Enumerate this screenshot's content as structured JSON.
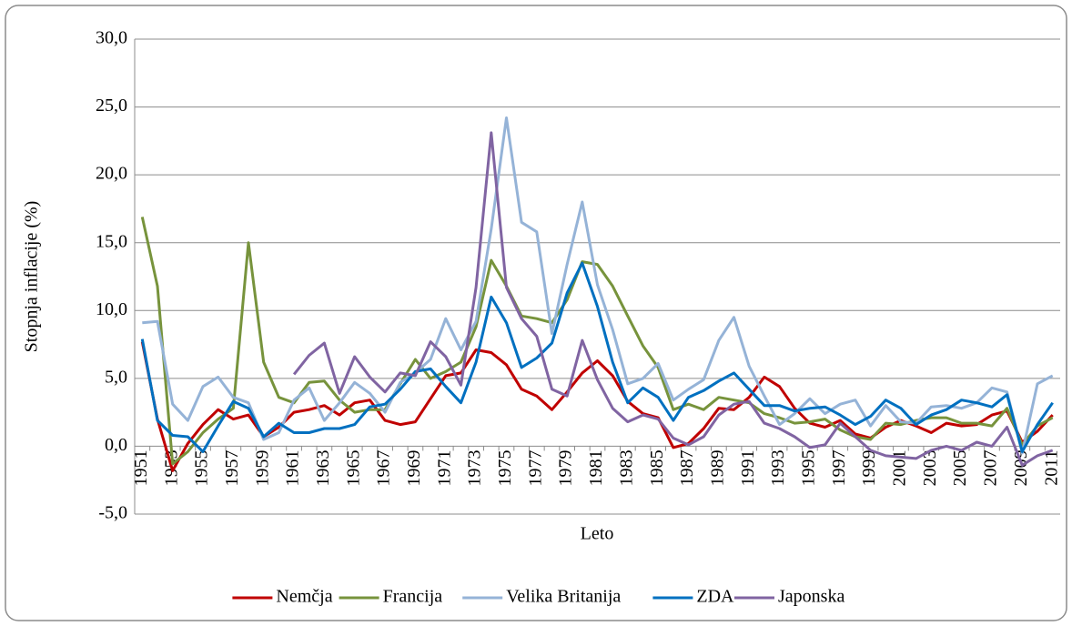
{
  "chart_data": {
    "type": "line",
    "y_label": "Stopnja inflacije (%)",
    "x_label": "Leto",
    "categories": [
      "1951",
      null,
      "1953",
      null,
      "1955",
      null,
      "1957",
      null,
      "1959",
      null,
      "1961",
      null,
      "1963",
      null,
      "1965",
      null,
      "1967",
      null,
      "1969",
      null,
      "1971",
      null,
      "1973",
      null,
      "1975",
      null,
      "1977",
      null,
      "1979",
      null,
      "1981",
      null,
      "1983",
      null,
      "1985",
      null,
      "1987",
      null,
      "1989",
      null,
      "1991",
      null,
      "1993",
      null,
      "1995",
      null,
      "1997",
      null,
      "1999",
      null,
      "2001",
      null,
      "2003",
      null,
      "2005",
      null,
      "2007",
      null,
      "2009",
      null,
      "2011"
    ],
    "ylim": [
      -5,
      30
    ],
    "yticks": [
      {
        "value": -5,
        "label": "-5,0"
      },
      {
        "value": 0,
        "label": "0,0"
      },
      {
        "value": 5,
        "label": "5,0"
      },
      {
        "value": 10,
        "label": "10,0"
      },
      {
        "value": 15,
        "label": "15,0"
      },
      {
        "value": 20,
        "label": "20,0"
      },
      {
        "value": 25,
        "label": "25,0"
      },
      {
        "value": 30,
        "label": "30,0"
      }
    ],
    "grid": true,
    "legend": "bottom",
    "series": [
      {
        "name": "Nemčja",
        "color": "#c00000",
        "values": [
          7.7,
          2.0,
          -1.8,
          0.2,
          1.6,
          2.7,
          2.0,
          2.3,
          0.7,
          1.4,
          2.5,
          2.7,
          3.0,
          2.3,
          3.2,
          3.4,
          1.9,
          1.6,
          1.8,
          3.5,
          5.2,
          5.4,
          7.1,
          6.9,
          6.0,
          4.2,
          3.7,
          2.7,
          4.0,
          5.4,
          6.3,
          5.2,
          3.3,
          2.4,
          2.1,
          -0.1,
          0.2,
          1.3,
          2.8,
          2.7,
          3.6,
          5.1,
          4.4,
          2.8,
          1.7,
          1.4,
          1.9,
          0.9,
          0.6,
          1.4,
          1.9,
          1.5,
          1.0,
          1.7,
          1.5,
          1.6,
          2.3,
          2.6,
          0.3,
          1.1,
          2.3
        ]
      },
      {
        "name": "Francija",
        "color": "#77933c",
        "values": [
          16.9,
          11.8,
          -1.3,
          -0.4,
          1.0,
          2.0,
          2.8,
          15.0,
          6.2,
          3.6,
          3.2,
          4.7,
          4.8,
          3.4,
          2.5,
          2.7,
          2.7,
          4.6,
          6.4,
          5.0,
          5.5,
          6.2,
          8.8,
          13.7,
          11.8,
          9.6,
          9.4,
          9.1,
          10.8,
          13.6,
          13.4,
          11.8,
          9.6,
          7.4,
          5.8,
          2.7,
          3.1,
          2.7,
          3.6,
          3.4,
          3.2,
          2.4,
          2.1,
          1.7,
          1.8,
          2.0,
          1.2,
          0.7,
          0.5,
          1.7,
          1.6,
          1.9,
          2.1,
          2.1,
          1.7,
          1.7,
          1.5,
          2.8,
          0.1,
          1.5,
          2.1
        ]
      },
      {
        "name": "Velika Britanija",
        "color": "#95b3d7",
        "values": [
          9.1,
          9.2,
          3.1,
          1.9,
          4.4,
          5.1,
          3.6,
          3.2,
          0.5,
          1.0,
          3.4,
          4.3,
          1.9,
          3.2,
          4.7,
          3.9,
          2.5,
          4.7,
          5.4,
          6.4,
          9.4,
          7.1,
          9.2,
          16.0,
          24.2,
          16.5,
          15.8,
          8.3,
          13.4,
          18.0,
          11.9,
          8.6,
          4.6,
          5.0,
          6.1,
          3.4,
          4.2,
          4.9,
          7.8,
          9.5,
          5.9,
          3.7,
          1.6,
          2.4,
          3.5,
          2.4,
          3.1,
          3.4,
          1.5,
          3.0,
          1.8,
          1.7,
          2.9,
          3.0,
          2.8,
          3.2,
          4.3,
          4.0,
          -0.5,
          4.6,
          5.2
        ]
      },
      {
        "name": "ZDA",
        "color": "#0070c0",
        "values": [
          7.9,
          1.9,
          0.8,
          0.7,
          -0.4,
          1.5,
          3.3,
          2.8,
          0.7,
          1.7,
          1.0,
          1.0,
          1.3,
          1.3,
          1.6,
          2.9,
          3.1,
          4.2,
          5.5,
          5.7,
          4.4,
          3.2,
          6.2,
          11.0,
          9.1,
          5.8,
          6.5,
          7.6,
          11.3,
          13.5,
          10.3,
          6.2,
          3.2,
          4.3,
          3.6,
          1.9,
          3.6,
          4.1,
          4.8,
          5.4,
          4.2,
          3.0,
          3.0,
          2.6,
          2.8,
          2.9,
          2.3,
          1.6,
          2.2,
          3.4,
          2.8,
          1.6,
          2.3,
          2.7,
          3.4,
          3.2,
          2.9,
          3.8,
          -0.4,
          1.6,
          3.2
        ]
      },
      {
        "name": "Japonska",
        "color": "#8064a2",
        "values": [
          null,
          null,
          null,
          null,
          null,
          null,
          null,
          null,
          null,
          null,
          5.3,
          6.7,
          7.6,
          3.9,
          6.6,
          5.1,
          4.0,
          5.4,
          5.2,
          7.7,
          6.6,
          4.5,
          11.7,
          23.1,
          11.7,
          9.4,
          8.1,
          4.2,
          3.7,
          7.8,
          4.9,
          2.8,
          1.8,
          2.3,
          2.0,
          0.6,
          0.1,
          0.7,
          2.3,
          3.1,
          3.3,
          1.7,
          1.3,
          0.7,
          -0.1,
          0.1,
          1.7,
          0.7,
          -0.3,
          -0.7,
          -0.8,
          -0.9,
          -0.3,
          0.0,
          -0.3,
          0.3,
          0.0,
          1.4,
          -1.4,
          -0.7,
          -0.3
        ]
      }
    ]
  }
}
